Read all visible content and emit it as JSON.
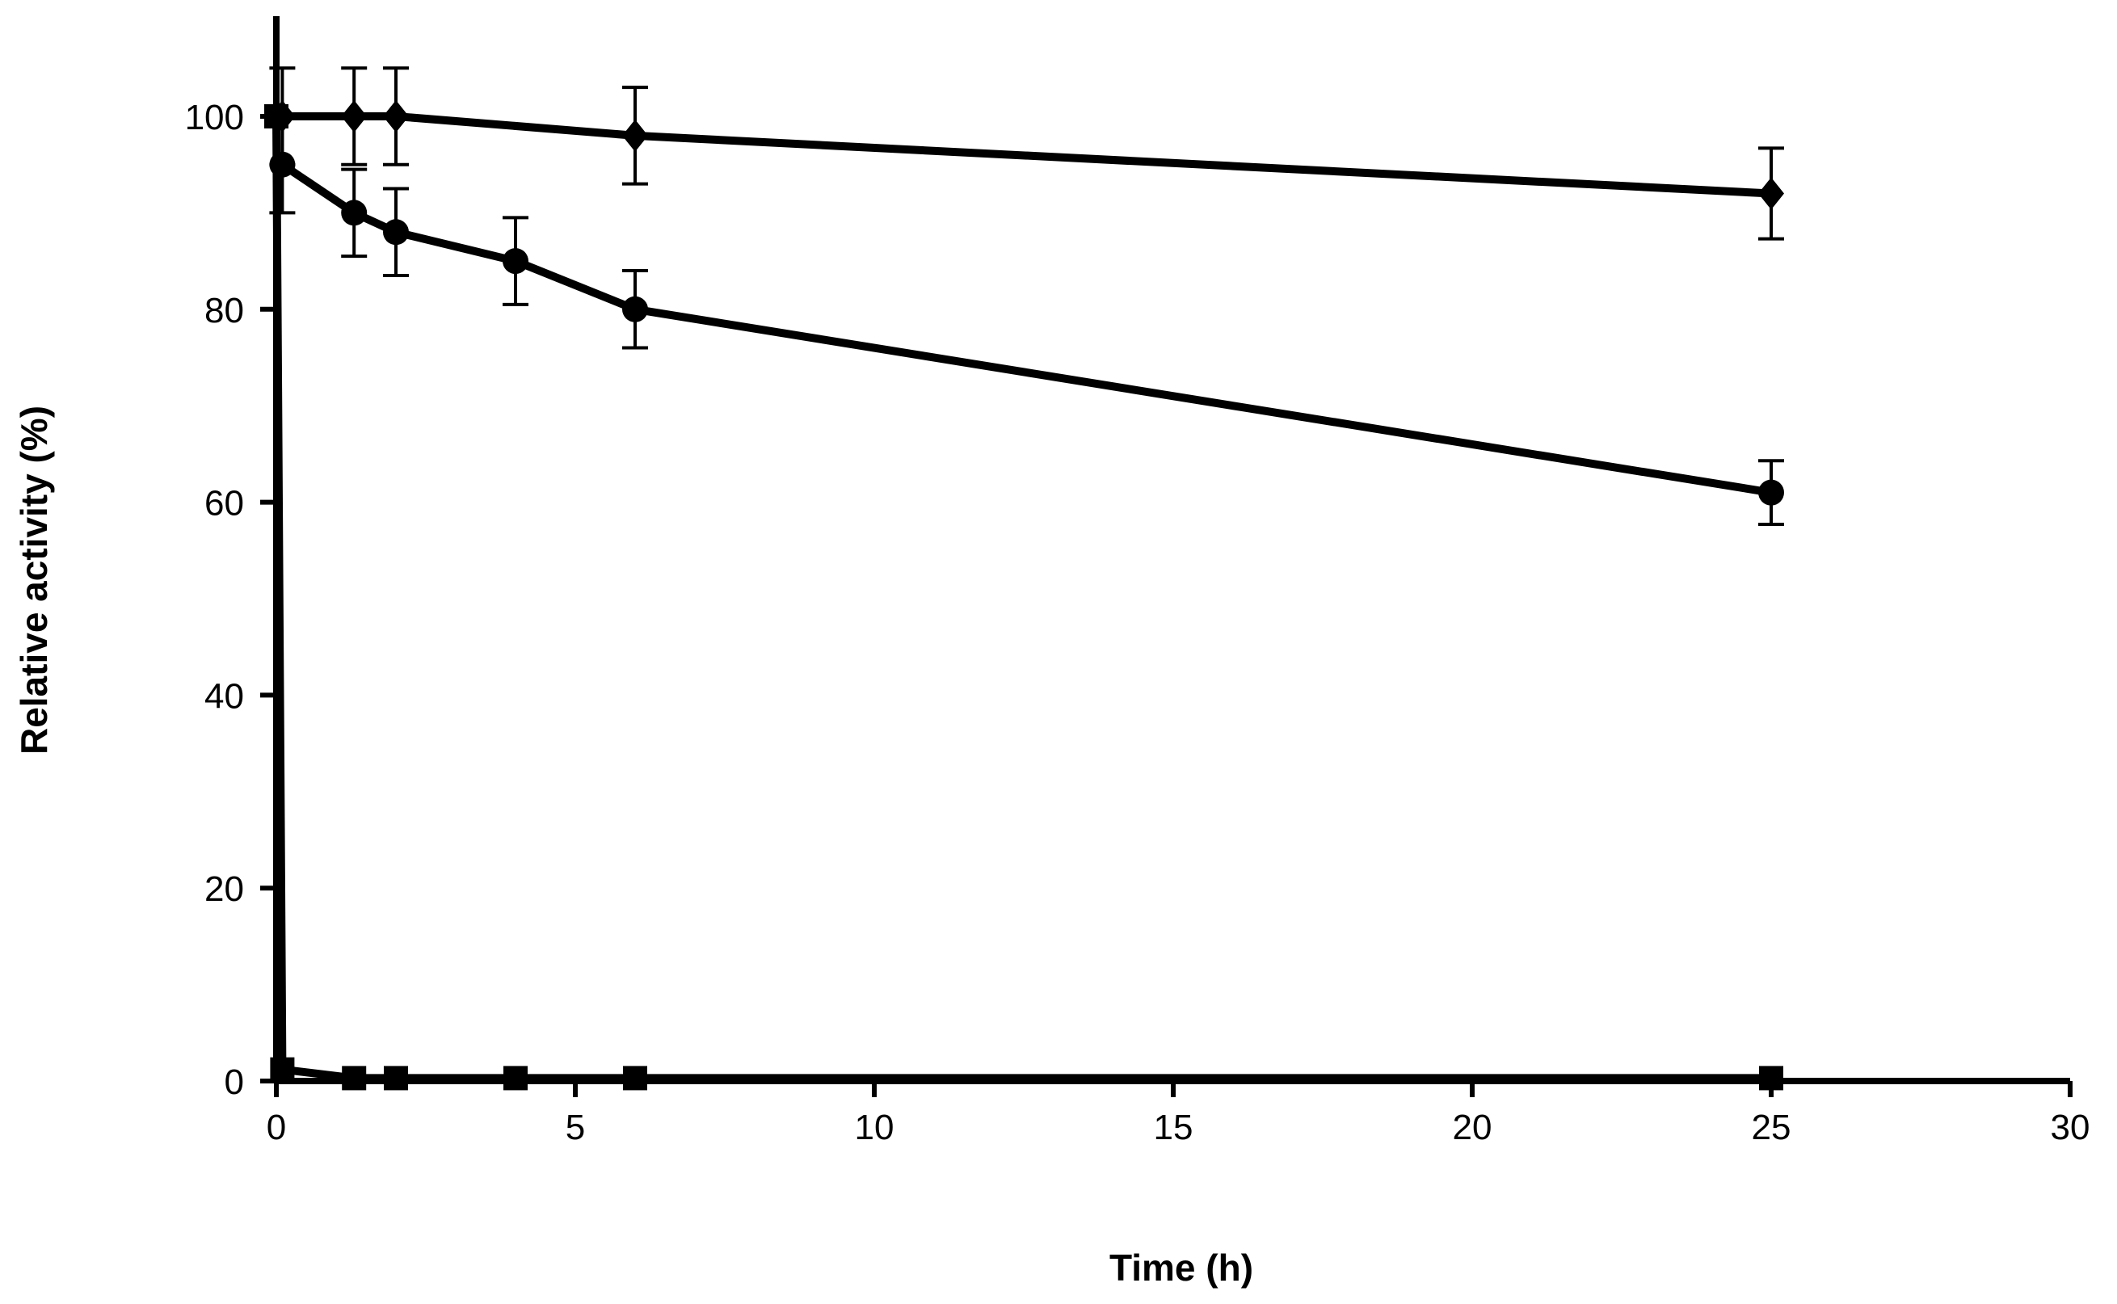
{
  "chart_data": {
    "type": "line",
    "title": "",
    "xlabel": "Time (h)",
    "ylabel": "Relative activity (%)",
    "xlim": [
      0,
      30
    ],
    "ylim": [
      0,
      110
    ],
    "xticks": [
      0,
      5,
      10,
      15,
      20,
      25,
      30
    ],
    "yticks": [
      0,
      20,
      40,
      60,
      80,
      100
    ],
    "grid": false,
    "legend": "none",
    "series": [
      {
        "name": "diamond",
        "marker": "diamond",
        "x": [
          0.1,
          1.3,
          2,
          6,
          25
        ],
        "y": [
          100,
          100,
          100,
          98,
          92
        ],
        "err": [
          5,
          5,
          5,
          5,
          4.7
        ]
      },
      {
        "name": "circle",
        "marker": "circle",
        "x": [
          0.1,
          1.3,
          2,
          4,
          6,
          25
        ],
        "y": [
          95,
          90,
          88,
          85,
          80,
          61
        ],
        "err": [
          5,
          4.5,
          4.5,
          4.5,
          4,
          3.3
        ]
      },
      {
        "name": "square",
        "marker": "square",
        "x": [
          0,
          0.1,
          1.3,
          2,
          4,
          6,
          25
        ],
        "y": [
          100,
          1.2,
          0.3,
          0.3,
          0.3,
          0.3,
          0.3
        ],
        "err": [
          0,
          0,
          0,
          0,
          0,
          0,
          0
        ]
      }
    ]
  }
}
